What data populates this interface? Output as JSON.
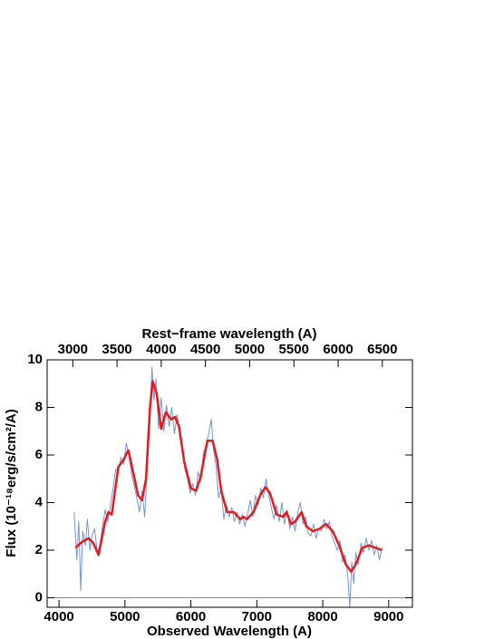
{
  "chart_data": {
    "type": "line",
    "xlabel": "Observed Wavelength (A)",
    "ylabel": "Flux (10⁻¹⁸erg/s/cm²/A)",
    "x2label": "Rest−frame wavelength (A)",
    "xlim": [
      3820,
      9360
    ],
    "ylim": [
      -0.4,
      10
    ],
    "x2lim": [
      2710,
      6840
    ],
    "xticks": [
      4000,
      5000,
      6000,
      7000,
      8000,
      9000
    ],
    "yticks": [
      0,
      2,
      4,
      6,
      8,
      10
    ],
    "x2ticks": [
      3000,
      3500,
      4000,
      4500,
      5000,
      5500,
      6000,
      6500
    ],
    "grid": false,
    "series": [
      {
        "color": "#7396d2",
        "x": [
          4230,
          4270,
          4300,
          4330,
          4360,
          4400,
          4430,
          4470,
          4500,
          4540,
          4580,
          4620,
          4660,
          4700,
          4740,
          4780,
          4820,
          4860,
          4900,
          4940,
          4980,
          5020,
          5060,
          5100,
          5140,
          5180,
          5220,
          5260,
          5300,
          5340,
          5380,
          5410,
          5440,
          5470,
          5510,
          5550,
          5590,
          5630,
          5670,
          5710,
          5750,
          5790,
          5830,
          5870,
          5910,
          5950,
          5990,
          6030,
          6070,
          6110,
          6150,
          6190,
          6230,
          6270,
          6310,
          6340,
          6380,
          6420,
          6460,
          6500,
          6540,
          6580,
          6620,
          6660,
          6700,
          6740,
          6780,
          6820,
          6860,
          6900,
          6940,
          6980,
          7020,
          7060,
          7100,
          7140,
          7180,
          7220,
          7260,
          7300,
          7340,
          7380,
          7420,
          7460,
          7500,
          7540,
          7580,
          7620,
          7660,
          7700,
          7740,
          7780,
          7820,
          7860,
          7900,
          7940,
          7980,
          8020,
          8060,
          8100,
          8140,
          8180,
          8220,
          8260,
          8300,
          8340,
          8380,
          8410,
          8440,
          8470,
          8500,
          8540,
          8580,
          8620,
          8660,
          8700,
          8740,
          8780,
          8820,
          8860,
          8900
        ],
        "values": [
          3.6,
          1.6,
          3.2,
          0.3,
          2.8,
          2.2,
          3.3,
          2.0,
          2.6,
          2.9,
          1.9,
          2.2,
          3.0,
          3.7,
          3.2,
          3.9,
          4.6,
          5.4,
          5.3,
          5.9,
          5.6,
          6.5,
          6.0,
          5.2,
          4.7,
          4.2,
          3.6,
          4.5,
          3.4,
          5.6,
          7.6,
          9.7,
          8.3,
          9.2,
          7.1,
          8.4,
          7.0,
          8.1,
          7.2,
          8.0,
          6.9,
          7.7,
          7.0,
          6.2,
          5.4,
          5.0,
          4.4,
          4.8,
          4.3,
          5.3,
          4.9,
          6.1,
          6.4,
          6.9,
          7.5,
          6.3,
          5.6,
          4.2,
          4.6,
          3.3,
          3.9,
          3.4,
          3.8,
          3.2,
          3.6,
          3.1,
          3.5,
          3.0,
          3.5,
          4.1,
          3.4,
          4.3,
          3.9,
          4.6,
          4.2,
          5.0,
          4.3,
          3.8,
          3.3,
          3.9,
          3.2,
          4.0,
          3.1,
          3.7,
          2.9,
          3.4,
          2.8,
          3.6,
          4.0,
          3.1,
          3.4,
          2.7,
          2.6,
          3.1,
          2.5,
          2.9,
          2.8,
          3.3,
          2.9,
          3.2,
          2.6,
          2.3,
          2.0,
          2.4,
          1.5,
          1.8,
          0.9,
          -0.4,
          1.5,
          0.6,
          1.9,
          1.4,
          2.3,
          1.9,
          2.5,
          2.0,
          2.4,
          1.8,
          2.2,
          1.6,
          2.1
        ]
      },
      {
        "color": "#e41a1c",
        "x": [
          4250,
          4350,
          4450,
          4520,
          4600,
          4700,
          4750,
          4800,
          4900,
          4980,
          5050,
          5100,
          5200,
          5260,
          5320,
          5380,
          5420,
          5480,
          5550,
          5620,
          5700,
          5760,
          5820,
          5900,
          6000,
          6080,
          6150,
          6250,
          6330,
          6400,
          6460,
          6550,
          6650,
          6750,
          6800,
          6850,
          6950,
          7050,
          7130,
          7200,
          7300,
          7400,
          7450,
          7520,
          7580,
          7680,
          7750,
          7850,
          7950,
          8050,
          8150,
          8250,
          8350,
          8430,
          8500,
          8600,
          8700,
          8800,
          8900
        ],
        "values": [
          2.1,
          2.35,
          2.5,
          2.3,
          1.8,
          3.2,
          3.6,
          3.5,
          5.5,
          5.8,
          6.2,
          5.6,
          4.3,
          4.1,
          5.0,
          8.0,
          9.1,
          8.6,
          7.1,
          7.8,
          7.5,
          7.6,
          7.2,
          5.7,
          4.6,
          4.5,
          5.1,
          6.6,
          6.6,
          5.8,
          4.5,
          3.6,
          3.6,
          3.3,
          3.4,
          3.3,
          3.6,
          4.3,
          4.65,
          4.4,
          3.5,
          3.4,
          3.6,
          3.1,
          3.2,
          3.6,
          3.0,
          2.8,
          2.9,
          3.1,
          2.8,
          2.2,
          1.4,
          1.1,
          1.4,
          2.1,
          2.2,
          2.1,
          2.0
        ]
      }
    ]
  }
}
